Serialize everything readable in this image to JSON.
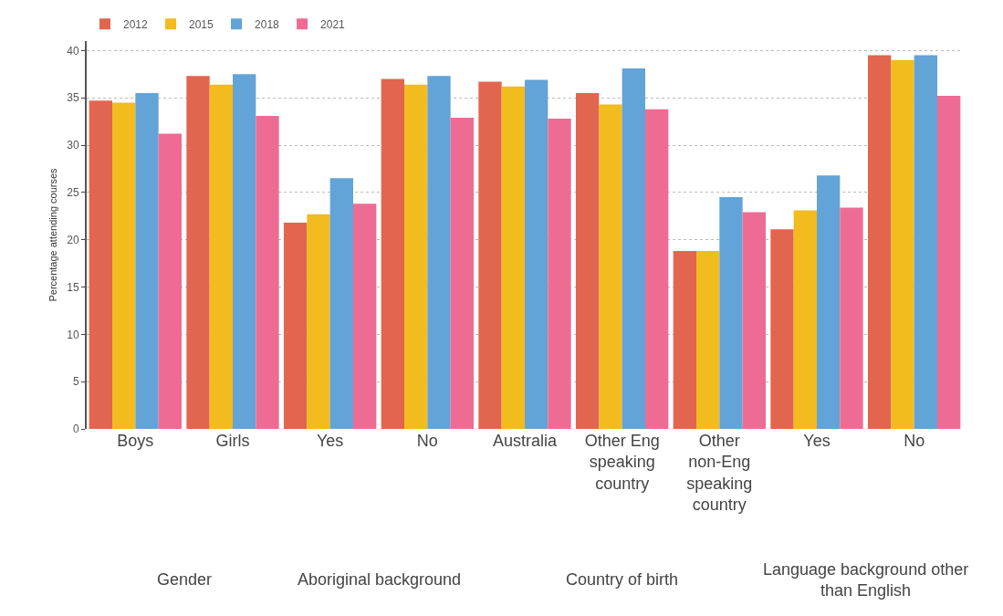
{
  "chart_data": {
    "type": "bar",
    "ylabel": "Percentage attending courses",
    "categories": [
      "Boys",
      "Girls",
      "Yes",
      "No",
      "Australia",
      "Other Eng speaking country",
      "Other non-Eng speaking country",
      "Yes",
      "No"
    ],
    "series": [
      {
        "name": "2012",
        "color": "#e2654f",
        "values": [
          34.7,
          37.3,
          21.8,
          37.0,
          36.7,
          35.5,
          18.8,
          21.1,
          39.5
        ]
      },
      {
        "name": "2015",
        "color": "#f2bb1e",
        "values": [
          34.5,
          36.4,
          22.7,
          36.4,
          36.2,
          34.3,
          18.8,
          23.1,
          39.0
        ]
      },
      {
        "name": "2018",
        "color": "#62a3d8",
        "values": [
          35.5,
          37.5,
          26.5,
          37.3,
          36.9,
          38.1,
          24.5,
          26.8,
          39.5
        ]
      },
      {
        "name": "2021",
        "color": "#ee6c94",
        "values": [
          31.2,
          33.1,
          23.8,
          32.9,
          32.8,
          33.8,
          22.9,
          23.4,
          35.2
        ]
      }
    ],
    "ylim": [
      0,
      41
    ],
    "yticks": [
      0,
      5,
      10,
      15,
      20,
      25,
      30,
      35,
      40
    ],
    "grid": "y",
    "legend": "top left",
    "annotations": [
      "Gender",
      "Aboriginal background",
      "Country of birth",
      "Language background other than English"
    ]
  }
}
